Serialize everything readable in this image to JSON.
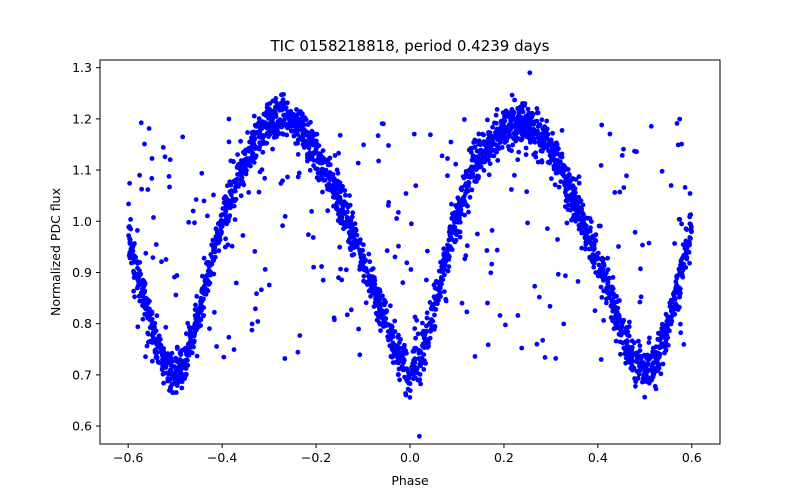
{
  "chart_data": {
    "type": "scatter",
    "title": "TIC 0158218818, period 0.4239 days",
    "xlabel": "Phase",
    "ylabel": "Normalized PDC flux",
    "xlim": [
      -0.66,
      0.66
    ],
    "ylim": [
      0.565,
      1.315
    ],
    "xticks": [
      -0.6,
      -0.4,
      -0.2,
      0.0,
      0.2,
      0.4,
      0.6
    ],
    "xtick_labels": [
      "−0.6",
      "−0.4",
      "−0.2",
      "0.0",
      "0.2",
      "0.4",
      "0.6"
    ],
    "yticks": [
      0.6,
      0.7,
      0.8,
      0.9,
      1.0,
      1.1,
      1.2,
      1.3
    ],
    "ytick_labels": [
      "0.6",
      "0.7",
      "0.8",
      "0.9",
      "1.0",
      "1.1",
      "1.2",
      "1.3"
    ],
    "grid": false,
    "marker_color": "#0000ff",
    "series": [
      {
        "curve_description_points": [
          [
            -0.6,
            0.98
          ],
          [
            -0.575,
            0.88
          ],
          [
            -0.55,
            0.79
          ],
          [
            -0.525,
            0.72
          ],
          [
            -0.5,
            0.7
          ],
          [
            -0.475,
            0.73
          ],
          [
            -0.45,
            0.82
          ],
          [
            -0.425,
            0.91
          ],
          [
            -0.4,
            1.0
          ],
          [
            -0.375,
            1.07
          ],
          [
            -0.35,
            1.12
          ],
          [
            -0.325,
            1.16
          ],
          [
            -0.3,
            1.19
          ],
          [
            -0.275,
            1.2
          ],
          [
            -0.25,
            1.19
          ],
          [
            -0.225,
            1.17
          ],
          [
            -0.2,
            1.13
          ],
          [
            -0.175,
            1.09
          ],
          [
            -0.15,
            1.04
          ],
          [
            -0.125,
            0.98
          ],
          [
            -0.1,
            0.92
          ],
          [
            -0.075,
            0.86
          ],
          [
            -0.05,
            0.8
          ],
          [
            -0.025,
            0.74
          ],
          [
            0.0,
            0.7
          ],
          [
            0.025,
            0.74
          ],
          [
            0.05,
            0.82
          ],
          [
            0.075,
            0.92
          ],
          [
            0.1,
            1.01
          ],
          [
            0.125,
            1.08
          ],
          [
            0.15,
            1.13
          ],
          [
            0.175,
            1.16
          ],
          [
            0.2,
            1.18
          ],
          [
            0.225,
            1.19
          ],
          [
            0.25,
            1.19
          ],
          [
            0.275,
            1.17
          ],
          [
            0.3,
            1.14
          ],
          [
            0.325,
            1.09
          ],
          [
            0.35,
            1.04
          ],
          [
            0.375,
            0.98
          ],
          [
            0.4,
            0.92
          ],
          [
            0.425,
            0.86
          ],
          [
            0.45,
            0.79
          ],
          [
            0.475,
            0.73
          ],
          [
            0.5,
            0.7
          ],
          [
            0.525,
            0.73
          ],
          [
            0.55,
            0.8
          ],
          [
            0.575,
            0.89
          ],
          [
            0.6,
            0.98
          ]
        ],
        "scatter_spread": 0.035,
        "outlier_y_range": [
          0.73,
          1.2
        ],
        "min_point": [
          0.02,
          0.58
        ],
        "max_point": [
          0.255,
          1.29
        ]
      }
    ]
  }
}
